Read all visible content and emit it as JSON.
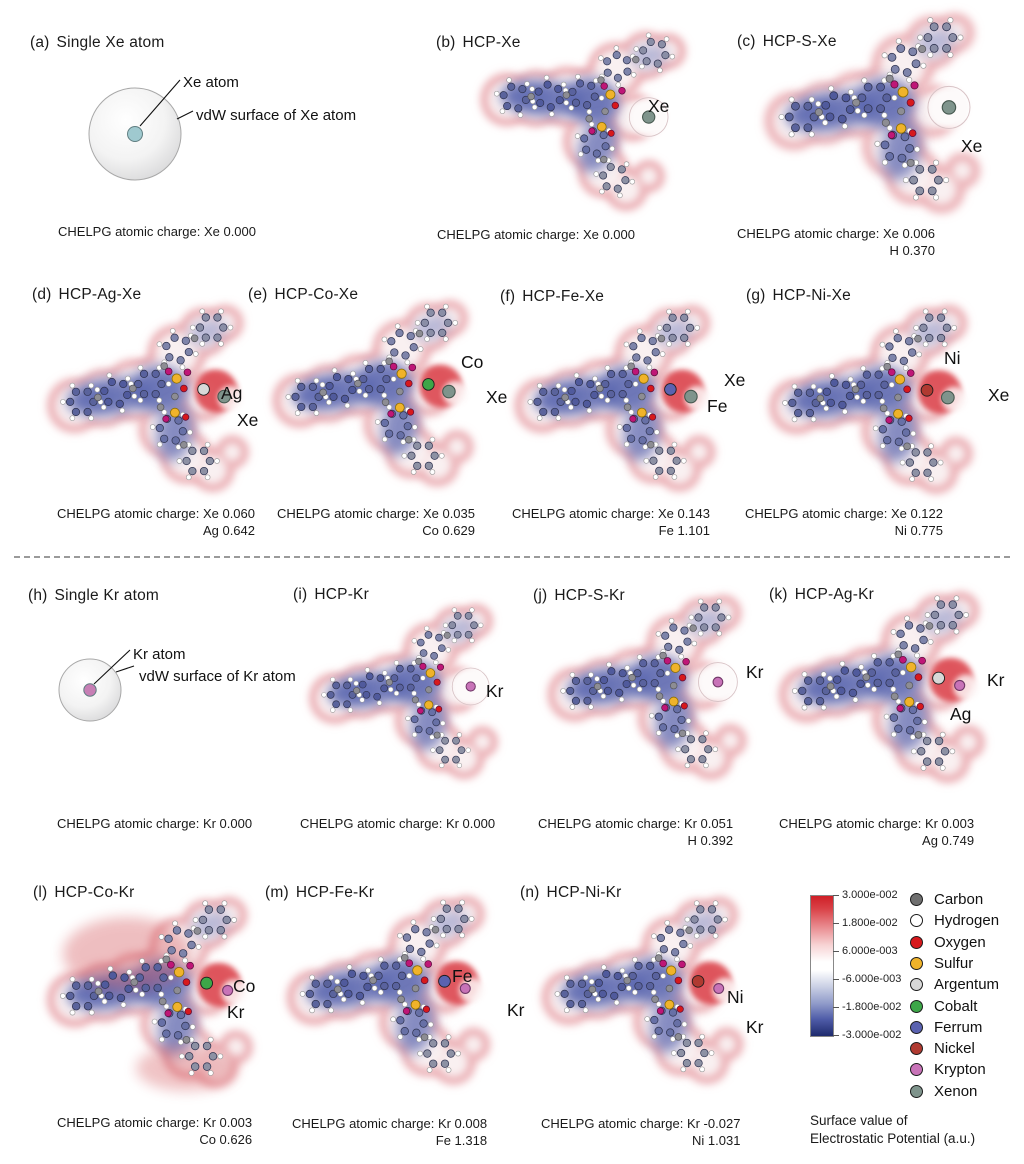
{
  "figure": {
    "panels": {
      "a": {
        "tag": "(a)",
        "title": "Single Xe atom",
        "atom_color": "#9fc9cf",
        "labels": {
          "atom": "Xe atom",
          "vdw": "vdW surface of Xe atom"
        },
        "caption": [
          "CHELPG atomic charge: Xe 0.000"
        ]
      },
      "b": {
        "tag": "(b)",
        "title": "HCP-Xe",
        "atoms": [
          "Xe"
        ],
        "caption": [
          "CHELPG atomic charge: Xe 0.000"
        ]
      },
      "c": {
        "tag": "(c)",
        "title": "HCP-S-Xe",
        "atoms": [
          "Xe"
        ],
        "caption": [
          "CHELPG atomic charge: Xe 0.006",
          "H 0.370"
        ]
      },
      "d": {
        "tag": "(d)",
        "title": "HCP-Ag-Xe",
        "atoms": [
          "Ag",
          "Xe"
        ],
        "caption": [
          "CHELPG atomic charge: Xe 0.060",
          "Ag 0.642"
        ]
      },
      "e": {
        "tag": "(e)",
        "title": "HCP-Co-Xe",
        "atoms": [
          "Co",
          "Xe"
        ],
        "caption": [
          "CHELPG atomic charge: Xe 0.035",
          "Co 0.629"
        ]
      },
      "f": {
        "tag": "(f)",
        "title": "HCP-Fe-Xe",
        "atoms": [
          "Xe",
          "Fe"
        ],
        "caption": [
          "CHELPG atomic charge: Xe 0.143",
          "Fe 1.101"
        ]
      },
      "g": {
        "tag": "(g)",
        "title": "HCP-Ni-Xe",
        "atoms": [
          "Ni",
          "Xe"
        ],
        "caption": [
          "CHELPG atomic charge: Xe 0.122",
          "Ni 0.775"
        ]
      },
      "h": {
        "tag": "(h)",
        "title": "Single Kr atom",
        "atom_color": "#c77fb5",
        "labels": {
          "atom": "Kr atom",
          "vdw": "vdW surface of Kr atom"
        },
        "caption": [
          "CHELPG atomic charge: Kr 0.000"
        ]
      },
      "i": {
        "tag": "(i)",
        "title": "HCP-Kr",
        "atoms": [
          "Kr"
        ],
        "caption": [
          "CHELPG atomic charge: Kr 0.000"
        ]
      },
      "j": {
        "tag": "(j)",
        "title": "HCP-S-Kr",
        "atoms": [
          "Kr"
        ],
        "caption": [
          "CHELPG atomic charge: Kr 0.051",
          "H 0.392"
        ]
      },
      "k": {
        "tag": "(k)",
        "title": "HCP-Ag-Kr",
        "atoms": [
          "Kr",
          "Ag"
        ],
        "caption": [
          "CHELPG atomic charge: Kr 0.003",
          "Ag 0.749"
        ]
      },
      "l": {
        "tag": "(l)",
        "title": "HCP-Co-Kr",
        "atoms": [
          "Co",
          "Kr"
        ],
        "caption": [
          "CHELPG atomic charge: Kr 0.003",
          "Co 0.626"
        ]
      },
      "m": {
        "tag": "(m)",
        "title": "HCP-Fe-Kr",
        "atoms": [
          "Fe",
          "Kr"
        ],
        "caption": [
          "CHELPG atomic charge: Kr 0.008",
          "Fe 1.318"
        ]
      },
      "n": {
        "tag": "(n)",
        "title": "HCP-Ni-Kr",
        "atoms": [
          "Ni",
          "Kr"
        ],
        "caption": [
          "CHELPG atomic charge: Kr -0.027",
          "Ni 1.031"
        ]
      }
    },
    "colorbar": {
      "ticks": [
        "3.000e-002",
        "1.800e-002",
        "6.000e-003",
        "-6.000e-003",
        "-1.800e-002",
        "-3.000e-002"
      ],
      "top_color": "#cf1f27",
      "mid_color": "#ffffff",
      "bottom_color": "#1e2a6d",
      "caption": [
        "Surface value of",
        "Electrostatic Potential (a.u.)"
      ]
    },
    "atom_legend": [
      {
        "name": "Carbon",
        "color": "#6f6f6f"
      },
      {
        "name": "Hydrogen",
        "color": "#ffffff"
      },
      {
        "name": "Oxygen",
        "color": "#d7191c"
      },
      {
        "name": "Sulfur",
        "color": "#f0b32a"
      },
      {
        "name": "Argentum",
        "color": "#d8d8d8"
      },
      {
        "name": "Cobalt",
        "color": "#3da648"
      },
      {
        "name": "Ferrum",
        "color": "#5a62b0"
      },
      {
        "name": "Nickel",
        "color": "#b03a31"
      },
      {
        "name": "Krypton",
        "color": "#c873b8"
      },
      {
        "name": "Xenon",
        "color": "#7f948c"
      }
    ]
  }
}
